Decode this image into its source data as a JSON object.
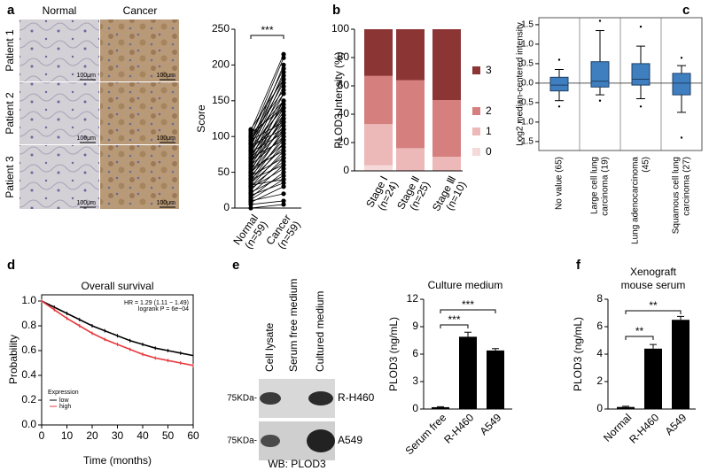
{
  "figure": {
    "panel_labels": [
      "a",
      "b",
      "c",
      "d",
      "e",
      "f"
    ],
    "ihc": {
      "columns": [
        "Normal",
        "Cancer"
      ],
      "rows": [
        "Patient 1",
        "Patient 2",
        "Patient 3"
      ],
      "scale_bar": "100μm"
    },
    "blot": {
      "lanes": [
        "Cell lysate",
        "Serum free medium",
        "Cultured medium"
      ],
      "marker": "75KDa-",
      "rows": [
        "R-H460",
        "A549"
      ],
      "caption": "WB: PLOD3"
    }
  },
  "chart_data": [
    {
      "type": "paired",
      "y_label": "Score",
      "categories": [
        [
          "Normal",
          "(n=59)"
        ],
        [
          "Cancer",
          "(n=59)"
        ]
      ],
      "values": [
        [
          5,
          8,
          10,
          12,
          15,
          18,
          20,
          22,
          25,
          28,
          30,
          30,
          32,
          35,
          35,
          38,
          40,
          40,
          42,
          45,
          45,
          48,
          50,
          50,
          52,
          55,
          55,
          58,
          60,
          60,
          62,
          65,
          65,
          68,
          70,
          70,
          72,
          75,
          75,
          78,
          80,
          80,
          82,
          85,
          85,
          88,
          90,
          90,
          92,
          95,
          95,
          98,
          100,
          100,
          102,
          105,
          108,
          110,
          0
        ],
        [
          10,
          30,
          20,
          40,
          50,
          35,
          60,
          45,
          70,
          55,
          80,
          65,
          40,
          90,
          75,
          100,
          85,
          60,
          110,
          95,
          70,
          120,
          105,
          90,
          130,
          115,
          80,
          140,
          125,
          100,
          150,
          135,
          110,
          160,
          120,
          95,
          145,
          170,
          130,
          105,
          180,
          150,
          125,
          190,
          140,
          110,
          160,
          200,
          175,
          120,
          185,
          150,
          210,
          165,
          195,
          140,
          215,
          180,
          5
        ]
      ],
      "color": "#000000",
      "ylim": [
        0,
        250
      ],
      "yticks": [
        0,
        50,
        100,
        150,
        200,
        250
      ],
      "annotations": [
        "***"
      ]
    },
    {
      "type": "stacked_bar",
      "y_label": "PLOD3 Intensity (%)",
      "categories": [
        [
          "Stage Ⅰ",
          "(n=24)"
        ],
        [
          "Stage Ⅱ",
          "(n=25)"
        ],
        [
          "Stage Ⅲ",
          "(n=10)"
        ]
      ],
      "series": [
        {
          "name": "0",
          "color": "#f6dada",
          "values": [
            4,
            0,
            0
          ]
        },
        {
          "name": "1",
          "color": "#ecb8b8",
          "values": [
            29,
            16,
            10
          ]
        },
        {
          "name": "2",
          "color": "#d67f7f",
          "values": [
            34,
            48,
            40
          ]
        },
        {
          "name": "3",
          "color": "#8c3535",
          "values": [
            33,
            36,
            50
          ]
        }
      ],
      "ylim": [
        0,
        100
      ],
      "yticks": [
        0,
        20,
        40,
        60,
        80,
        100
      ]
    },
    {
      "type": "box",
      "y_label": "Log2 median-centered intensity",
      "categories": [
        [
          "No value (65)"
        ],
        [
          "Large cell lung",
          "carcinoma (19)"
        ],
        [
          "Lung adenocarcinoma",
          "(45)"
        ],
        [
          "Squamous cell lung",
          "carcinoma (27)"
        ]
      ],
      "boxes": [
        {
          "whisker_low": -0.45,
          "q1": -0.2,
          "median": -0.05,
          "q3": 0.15,
          "whisker_high": 0.35,
          "outliers": [
            -0.6,
            0.6
          ]
        },
        {
          "whisker_low": -0.3,
          "q1": -0.1,
          "median": 0.05,
          "q3": 0.55,
          "whisker_high": 1.35,
          "outliers": [
            -0.45,
            1.6
          ]
        },
        {
          "whisker_low": -0.4,
          "q1": -0.05,
          "median": 0.1,
          "q3": 0.5,
          "whisker_high": 0.95,
          "outliers": [
            -0.6,
            1.45
          ]
        },
        {
          "whisker_low": -0.75,
          "q1": -0.3,
          "median": 0.0,
          "q3": 0.25,
          "whisker_high": 0.45,
          "outliers": [
            -1.4,
            0.65
          ]
        }
      ],
      "color": "#3f7fbf",
      "ylim": [
        -1.73,
        1.68
      ],
      "yticks": [
        -1.5,
        {
          "value": -1,
          "label": "-1.0"
        },
        -0.5,
        {
          "value": 0,
          "label": "0.0"
        },
        0.5,
        {
          "value": 1,
          "label": "1.0"
        },
        1.5
      ]
    },
    {
      "type": "line",
      "title": "Overall survival",
      "x_label": "Time (months)",
      "y_label": "Probability",
      "annotations": [
        "HR = 1.29 (1.11 − 1.49)",
        "logrank P = 6e−04"
      ],
      "legend_title": "Expression",
      "x": [
        0,
        5,
        10,
        15,
        20,
        25,
        30,
        35,
        40,
        45,
        50,
        55,
        60
      ],
      "series": [
        {
          "name": "low",
          "color": "#000000",
          "values": [
            1.0,
            0.95,
            0.9,
            0.85,
            0.8,
            0.76,
            0.72,
            0.68,
            0.65,
            0.62,
            0.6,
            0.58,
            0.56
          ]
        },
        {
          "name": "high",
          "color": "#e8383d",
          "values": [
            1.0,
            0.93,
            0.86,
            0.8,
            0.74,
            0.69,
            0.65,
            0.61,
            0.57,
            0.54,
            0.52,
            0.5,
            0.48
          ]
        }
      ],
      "xlim": [
        0,
        60
      ],
      "xticks": [
        0,
        10,
        20,
        30,
        40,
        50,
        60
      ],
      "ylim": [
        0,
        1.05
      ],
      "yticks": [
        {
          "value": 0,
          "label": "0.0"
        },
        0.2,
        0.4,
        0.6,
        0.8,
        {
          "value": 1,
          "label": "1.0"
        }
      ]
    },
    {
      "type": "bar",
      "title": [
        "Culture medium"
      ],
      "y_label": "PLOD3 (ng/mL)",
      "categories": [
        "Serum free",
        "R-H460",
        "A549"
      ],
      "values": [
        0.2,
        7.9,
        6.4
      ],
      "errors": [
        0.05,
        0.5,
        0.2
      ],
      "color": "#000000",
      "ylim": [
        0,
        12
      ],
      "yticks": [
        0,
        3,
        6,
        9,
        12
      ],
      "annotations": [
        "***",
        "***"
      ]
    },
    {
      "type": "bar",
      "title": [
        "Xenograft",
        "mouse serum"
      ],
      "y_label": "PLOD3 (ng/mL)",
      "categories": [
        "Normal",
        "R-H460",
        "A549"
      ],
      "values": [
        0.15,
        4.4,
        6.5
      ],
      "errors": [
        0.05,
        0.3,
        0.25
      ],
      "color": "#000000",
      "ylim": [
        0,
        8
      ],
      "yticks": [
        0,
        2,
        4,
        6,
        8
      ],
      "annotations": [
        "**",
        "**"
      ]
    }
  ]
}
